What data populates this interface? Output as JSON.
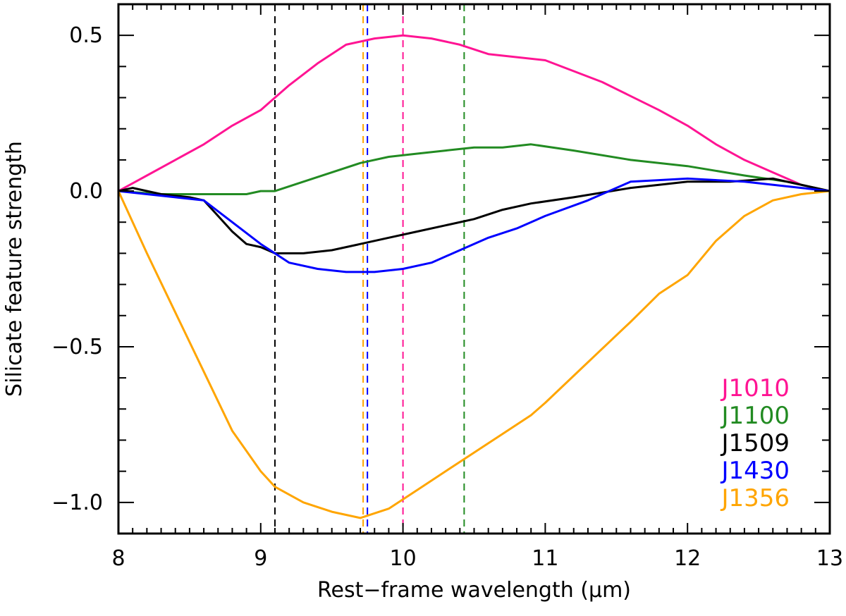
{
  "chart_data": {
    "type": "line",
    "xlabel": "Rest−frame wavelength (μm)",
    "ylabel": "Silicate feature strength",
    "xlim": [
      8,
      13
    ],
    "ylim": [
      -1.1,
      0.6
    ],
    "x_ticks": [
      8,
      9,
      10,
      11,
      12,
      13
    ],
    "x_tick_labels": [
      "8",
      "9",
      "10",
      "11",
      "12",
      "13"
    ],
    "y_ticks": [
      -1.0,
      -0.5,
      0.0,
      0.5
    ],
    "y_tick_labels": [
      "−1.0",
      "−0.5",
      "0.0",
      "0.5"
    ],
    "grid": false,
    "legend_position": "bottom-right",
    "series": [
      {
        "name": "J1010",
        "color": "#ff1493",
        "x": [
          8.0,
          8.2,
          8.4,
          8.6,
          8.8,
          9.0,
          9.1,
          9.2,
          9.4,
          9.6,
          9.8,
          10.0,
          10.2,
          10.4,
          10.6,
          10.8,
          11.0,
          11.4,
          11.8,
          12.0,
          12.2,
          12.4,
          12.6,
          12.8,
          13.0
        ],
        "y": [
          0.0,
          0.05,
          0.1,
          0.15,
          0.21,
          0.26,
          0.3,
          0.34,
          0.41,
          0.47,
          0.49,
          0.5,
          0.49,
          0.47,
          0.44,
          0.43,
          0.42,
          0.35,
          0.26,
          0.21,
          0.15,
          0.1,
          0.06,
          0.02,
          0.0
        ]
      },
      {
        "name": "J1100",
        "color": "#228b22",
        "x": [
          8.0,
          8.3,
          8.6,
          8.9,
          9.0,
          9.1,
          9.3,
          9.5,
          9.7,
          9.9,
          10.1,
          10.3,
          10.5,
          10.7,
          10.9,
          11.2,
          11.6,
          12.0,
          12.4,
          12.7,
          13.0
        ],
        "y": [
          0.0,
          -0.01,
          -0.01,
          -0.01,
          0.0,
          0.0,
          0.03,
          0.06,
          0.09,
          0.11,
          0.12,
          0.13,
          0.14,
          0.14,
          0.15,
          0.13,
          0.1,
          0.08,
          0.05,
          0.03,
          0.0
        ]
      },
      {
        "name": "J1509",
        "color": "#000000",
        "x": [
          8.0,
          8.1,
          8.3,
          8.5,
          8.6,
          8.7,
          8.8,
          8.9,
          9.0,
          9.1,
          9.3,
          9.5,
          9.7,
          9.9,
          10.1,
          10.3,
          10.5,
          10.7,
          10.9,
          11.2,
          11.6,
          11.8,
          12.0,
          12.3,
          12.6,
          13.0
        ],
        "y": [
          0.0,
          0.01,
          -0.01,
          -0.02,
          -0.03,
          -0.08,
          -0.13,
          -0.17,
          -0.18,
          -0.2,
          -0.2,
          -0.19,
          -0.17,
          -0.15,
          -0.13,
          -0.11,
          -0.09,
          -0.06,
          -0.04,
          -0.02,
          0.01,
          0.02,
          0.03,
          0.03,
          0.04,
          0.0
        ]
      },
      {
        "name": "J1430",
        "color": "#0000ff",
        "x": [
          8.0,
          8.2,
          8.4,
          8.6,
          8.8,
          9.0,
          9.2,
          9.4,
          9.6,
          9.8,
          10.0,
          10.2,
          10.4,
          10.6,
          10.8,
          11.0,
          11.3,
          11.6,
          12.0,
          12.4,
          12.8,
          13.0
        ],
        "y": [
          0.0,
          -0.01,
          -0.02,
          -0.03,
          -0.1,
          -0.17,
          -0.23,
          -0.25,
          -0.26,
          -0.26,
          -0.25,
          -0.23,
          -0.19,
          -0.15,
          -0.12,
          -0.08,
          -0.03,
          0.03,
          0.04,
          0.03,
          0.01,
          0.0
        ]
      },
      {
        "name": "J1356",
        "color": "#ffa500",
        "x": [
          8.0,
          8.2,
          8.4,
          8.6,
          8.8,
          9.0,
          9.1,
          9.3,
          9.5,
          9.7,
          9.9,
          10.1,
          10.3,
          10.5,
          10.7,
          10.9,
          11.0,
          11.3,
          11.6,
          11.8,
          12.0,
          12.2,
          12.4,
          12.6,
          12.8,
          13.0
        ],
        "y": [
          0.0,
          -0.2,
          -0.39,
          -0.58,
          -0.77,
          -0.9,
          -0.95,
          -1.0,
          -1.03,
          -1.05,
          -1.02,
          -0.96,
          -0.9,
          -0.84,
          -0.78,
          -0.72,
          -0.68,
          -0.55,
          -0.42,
          -0.33,
          -0.27,
          -0.16,
          -0.08,
          -0.03,
          -0.01,
          0.0
        ]
      }
    ],
    "vertical_lines": [
      {
        "x": 9.1,
        "color": "#000000",
        "style": "dashed"
      },
      {
        "x": 9.72,
        "color": "#ffa500",
        "style": "dashed"
      },
      {
        "x": 9.75,
        "color": "#0000ff",
        "style": "dashed"
      },
      {
        "x": 10.0,
        "color": "#ff1493",
        "style": "dashed"
      },
      {
        "x": 10.43,
        "color": "#228b22",
        "style": "dashed"
      }
    ],
    "legend": [
      {
        "label": "J1010",
        "color": "#ff1493"
      },
      {
        "label": "J1100",
        "color": "#228b22"
      },
      {
        "label": "J1509",
        "color": "#000000"
      },
      {
        "label": "J1430",
        "color": "#0000ff"
      },
      {
        "label": "J1356",
        "color": "#ffa500"
      }
    ]
  }
}
